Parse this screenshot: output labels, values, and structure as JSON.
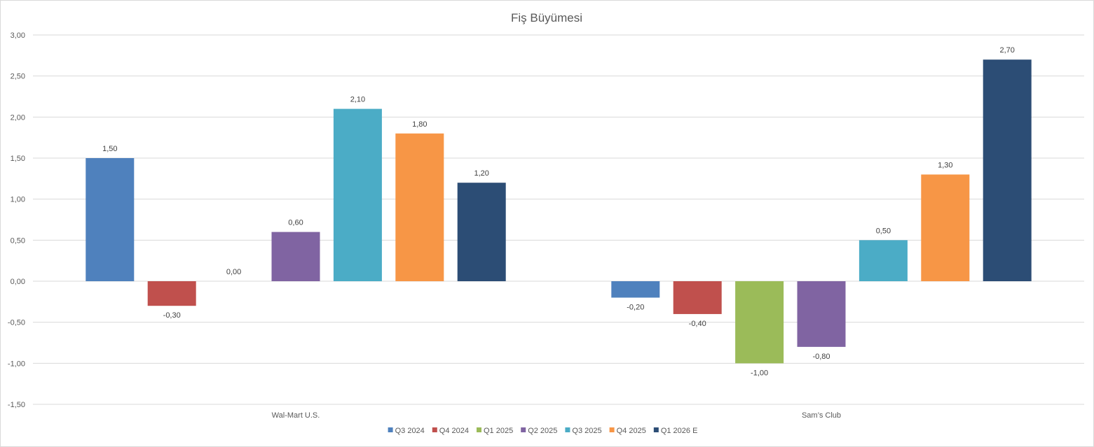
{
  "chart_data": {
    "type": "bar",
    "title": "Fiş Büyümesi",
    "xlabel": "",
    "ylabel": "",
    "categories": [
      "Wal-Mart U.S.",
      "Sam’s Club"
    ],
    "ylim": [
      -1.5,
      3.0
    ],
    "y_ticks": [
      3.0,
      2.5,
      2.0,
      1.5,
      1.0,
      0.5,
      0.0,
      -0.5,
      -1.0,
      -1.5
    ],
    "y_tick_labels": [
      "3,00",
      "2,50",
      "2,00",
      "1,50",
      "1,00",
      "0,50",
      "0,00",
      "-0,50",
      "-1,00",
      "-1,50"
    ],
    "grid": true,
    "legend_position": "bottom",
    "series": [
      {
        "name": "Q3 2024",
        "color": "#4f81bd",
        "values": [
          1.5,
          -0.2
        ],
        "labels": [
          "1,50",
          "-0,20"
        ]
      },
      {
        "name": "Q4 2024",
        "color": "#c0504d",
        "values": [
          -0.3,
          -0.4
        ],
        "labels": [
          "-0,30",
          "-0,40"
        ]
      },
      {
        "name": "Q1 2025",
        "color": "#9bbb59",
        "values": [
          0.0,
          -1.0
        ],
        "labels": [
          "0,00",
          "-1,00"
        ]
      },
      {
        "name": "Q2 2025",
        "color": "#8064a2",
        "values": [
          0.6,
          -0.8
        ],
        "labels": [
          "0,60",
          "-0,80"
        ]
      },
      {
        "name": "Q3 2025",
        "color": "#4bacc6",
        "values": [
          2.1,
          0.5
        ],
        "labels": [
          "2,10",
          "0,50"
        ]
      },
      {
        "name": "Q4 2025",
        "color": "#f79646",
        "values": [
          1.8,
          1.3
        ],
        "labels": [
          "1,80",
          "1,30"
        ]
      },
      {
        "name": "Q1 2026 E",
        "color": "#2c4d75",
        "values": [
          1.2,
          2.7
        ],
        "labels": [
          "1,20",
          "2,70"
        ]
      }
    ]
  }
}
